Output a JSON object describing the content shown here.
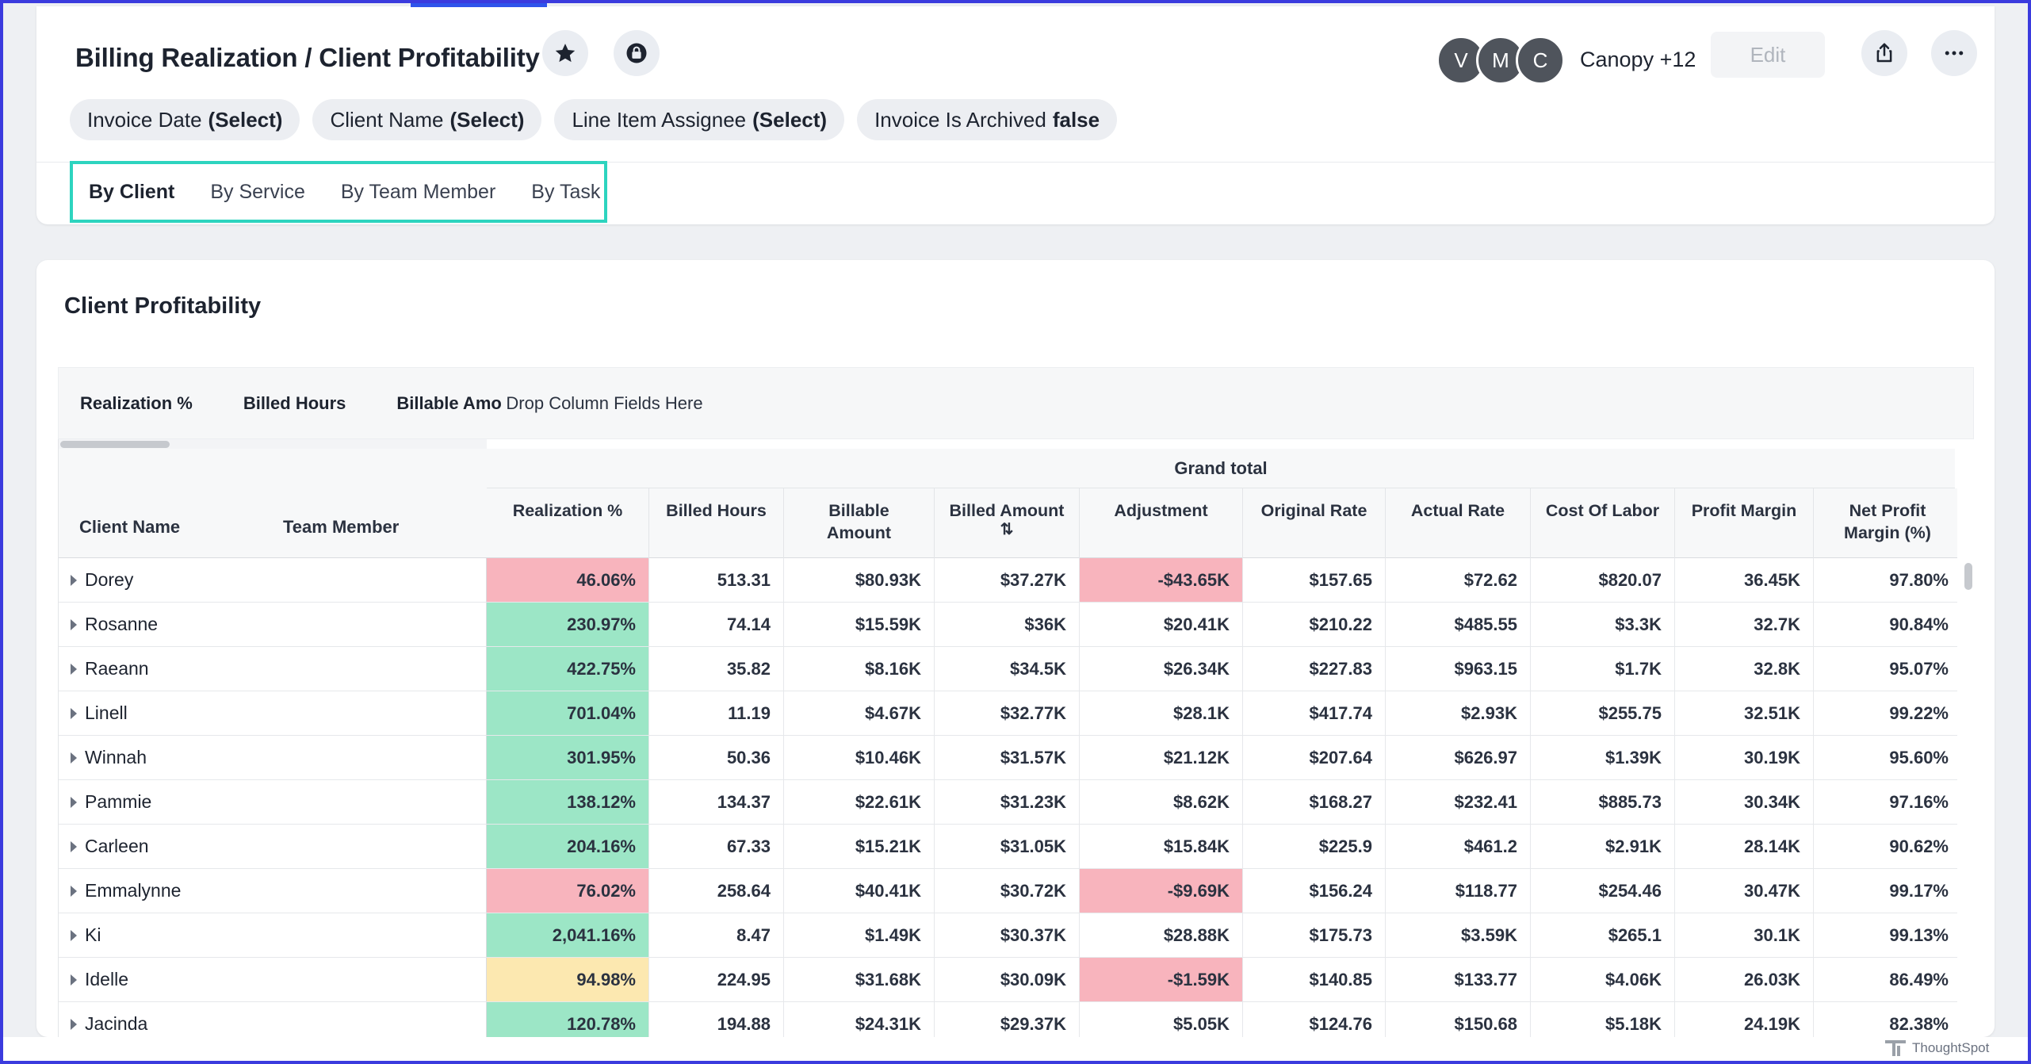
{
  "header": {
    "title": "Billing Realization / Client Profitability",
    "avatars": [
      "V",
      "M",
      "C"
    ],
    "shared_with": "Canopy +12",
    "edit_label": "Edit"
  },
  "filters": [
    {
      "label": "Invoice Date",
      "value": "(Select)"
    },
    {
      "label": "Client Name",
      "value": "(Select)"
    },
    {
      "label": "Line Item Assignee",
      "value": "(Select)"
    },
    {
      "label": "Invoice Is Archived",
      "value": "false"
    }
  ],
  "tabs": [
    "By Client",
    "By Service",
    "By Team Member",
    "By Task"
  ],
  "active_tab": "By Client",
  "viz": {
    "title": "Client Profitability",
    "pivot_fields": [
      "Realization %",
      "Billed Hours",
      "Billable Amo"
    ],
    "drop_hint": "Drop Column Fields Here",
    "row_headers": [
      "Client Name",
      "Team Member"
    ],
    "grand_total": "Grand total",
    "columns": [
      [
        "Realization %"
      ],
      [
        "Billed Hours"
      ],
      [
        "Billable",
        "Amount"
      ],
      [
        "Billed Amount"
      ],
      [
        "Adjustment"
      ],
      [
        "Original Rate"
      ],
      [
        "Actual Rate"
      ],
      [
        "Cost Of Labor"
      ],
      [
        "Profit Margin"
      ],
      [
        "Net Profit",
        "Margin (%)"
      ]
    ],
    "rows": [
      {
        "client": "Dorey",
        "values": [
          "46.06%",
          "513.31",
          "$80.93K",
          "$37.27K",
          "-$43.65K",
          "$157.65",
          "$72.62",
          "$820.07",
          "36.45K",
          "97.80%"
        ],
        "realization_status": "low",
        "adjustment_negative": true
      },
      {
        "client": "Rosanne",
        "values": [
          "230.97%",
          "74.14",
          "$15.59K",
          "$36K",
          "$20.41K",
          "$210.22",
          "$485.55",
          "$3.3K",
          "32.7K",
          "90.84%"
        ],
        "realization_status": "high",
        "adjustment_negative": false
      },
      {
        "client": "Raeann",
        "values": [
          "422.75%",
          "35.82",
          "$8.16K",
          "$34.5K",
          "$26.34K",
          "$227.83",
          "$963.15",
          "$1.7K",
          "32.8K",
          "95.07%"
        ],
        "realization_status": "high",
        "adjustment_negative": false
      },
      {
        "client": "Linell",
        "values": [
          "701.04%",
          "11.19",
          "$4.67K",
          "$32.77K",
          "$28.1K",
          "$417.74",
          "$2.93K",
          "$255.75",
          "32.51K",
          "99.22%"
        ],
        "realization_status": "high",
        "adjustment_negative": false
      },
      {
        "client": "Winnah",
        "values": [
          "301.95%",
          "50.36",
          "$10.46K",
          "$31.57K",
          "$21.12K",
          "$207.64",
          "$626.97",
          "$1.39K",
          "30.19K",
          "95.60%"
        ],
        "realization_status": "high",
        "adjustment_negative": false
      },
      {
        "client": "Pammie",
        "values": [
          "138.12%",
          "134.37",
          "$22.61K",
          "$31.23K",
          "$8.62K",
          "$168.27",
          "$232.41",
          "$885.73",
          "30.34K",
          "97.16%"
        ],
        "realization_status": "high",
        "adjustment_negative": false
      },
      {
        "client": "Carleen",
        "values": [
          "204.16%",
          "67.33",
          "$15.21K",
          "$31.05K",
          "$15.84K",
          "$225.9",
          "$461.2",
          "$2.91K",
          "28.14K",
          "90.62%"
        ],
        "realization_status": "high",
        "adjustment_negative": false
      },
      {
        "client": "Emmalynne",
        "values": [
          "76.02%",
          "258.64",
          "$40.41K",
          "$30.72K",
          "-$9.69K",
          "$156.24",
          "$118.77",
          "$254.46",
          "30.47K",
          "99.17%"
        ],
        "realization_status": "low",
        "adjustment_negative": true
      },
      {
        "client": "Ki",
        "values": [
          "2,041.16%",
          "8.47",
          "$1.49K",
          "$30.37K",
          "$28.88K",
          "$175.73",
          "$3.59K",
          "$265.1",
          "30.1K",
          "99.13%"
        ],
        "realization_status": "high",
        "adjustment_negative": false
      },
      {
        "client": "Idelle",
        "values": [
          "94.98%",
          "224.95",
          "$31.68K",
          "$30.09K",
          "-$1.59K",
          "$140.85",
          "$133.77",
          "$4.06K",
          "26.03K",
          "86.49%"
        ],
        "realization_status": "mid",
        "adjustment_negative": true
      },
      {
        "client": "Jacinda",
        "values": [
          "120.78%",
          "194.88",
          "$24.31K",
          "$29.37K",
          "$5.05K",
          "$124.76",
          "$150.68",
          "$5.18K",
          "24.19K",
          "82.38%"
        ],
        "realization_status": "high",
        "adjustment_negative": false
      }
    ]
  },
  "colors": {
    "high": "#9ce6c6",
    "mid": "#fce8b0",
    "low": "#f8b4bd",
    "tab_highlight": "#2dd4bf"
  },
  "brand": "ThoughtSpot"
}
